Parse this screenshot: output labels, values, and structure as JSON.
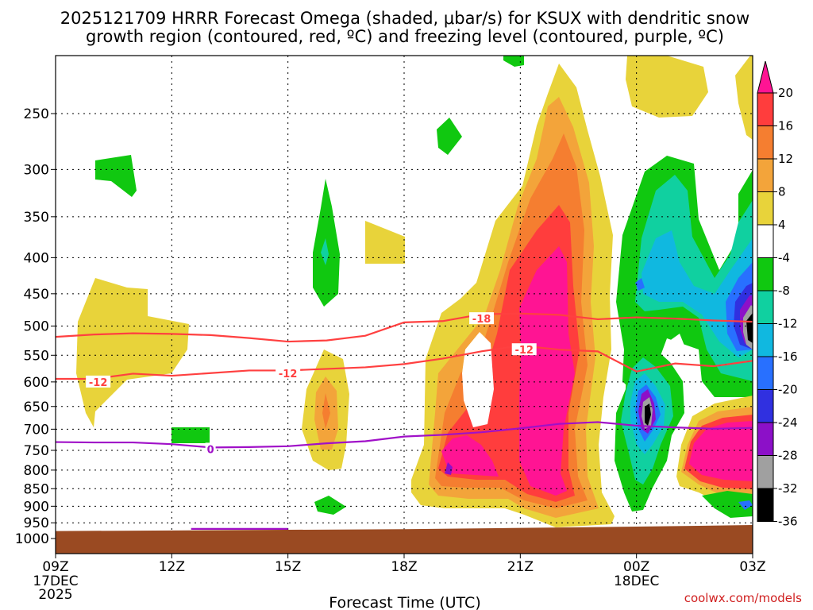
{
  "chart_data": {
    "type": "heatmap",
    "title_line1": "2025121709 HRRR Forecast Omega (shaded, μbar/s) for KSUX with dendritic snow",
    "title_line2": "growth region (contoured, red, ºC) and freezing level (contoured, purple, ºC)",
    "xlabel": "Forecast Time (UTC)",
    "credit": "coolwx.com/models",
    "x_ticks": [
      {
        "hour": 0,
        "label": "09Z",
        "date": "17DEC",
        "year": "2025"
      },
      {
        "hour": 3,
        "label": "12Z"
      },
      {
        "hour": 6,
        "label": "15Z"
      },
      {
        "hour": 9,
        "label": "18Z"
      },
      {
        "hour": 12,
        "label": "21Z"
      },
      {
        "hour": 15,
        "label": "00Z",
        "date": "18DEC"
      },
      {
        "hour": 18,
        "label": "03Z"
      }
    ],
    "y_ticks": [
      250,
      300,
      350,
      400,
      450,
      500,
      550,
      600,
      650,
      700,
      750,
      800,
      850,
      900,
      950,
      1000
    ],
    "ylim": [
      200,
      1025
    ],
    "xlim": [
      0,
      18
    ],
    "colorbar": {
      "labels": [
        "20",
        "16",
        "12",
        "8",
        "4",
        "-4",
        "-8",
        "-12",
        "-16",
        "-20",
        "-24",
        "-28",
        "-32",
        "-36"
      ],
      "colors": [
        "#ff1493",
        "#ff3d3d",
        "#f57e30",
        "#f3a43a",
        "#e8d33a",
        "#ffffff",
        "#10c810",
        "#10d0a0",
        "#10b8e0",
        "#2870ff",
        "#3030e0",
        "#8c10c8",
        "#a0a0a0",
        "#000000"
      ]
    },
    "contours": [
      {
        "name": "dendritic-top",
        "value": -18,
        "label": "-18",
        "color": "#ff4040",
        "points": [
          [
            0,
            518
          ],
          [
            1,
            514
          ],
          [
            2,
            512
          ],
          [
            3,
            513
          ],
          [
            4,
            515
          ],
          [
            5,
            520
          ],
          [
            6,
            526
          ],
          [
            7,
            524
          ],
          [
            8,
            516
          ],
          [
            9,
            494
          ],
          [
            10,
            492
          ],
          [
            11,
            481
          ],
          [
            12,
            480
          ],
          [
            13,
            482
          ],
          [
            14,
            489
          ],
          [
            15,
            486
          ],
          [
            16,
            488
          ],
          [
            17,
            491
          ],
          [
            18,
            493
          ]
        ]
      },
      {
        "name": "dendritic-bottom",
        "value": -12,
        "label": "-12",
        "color": "#ff4040",
        "points": [
          [
            0,
            594
          ],
          [
            1,
            594
          ],
          [
            2,
            584
          ],
          [
            3,
            588
          ],
          [
            4,
            583
          ],
          [
            5,
            578
          ],
          [
            6,
            578
          ],
          [
            7,
            575
          ],
          [
            8,
            572
          ],
          [
            9,
            566
          ],
          [
            10,
            556
          ],
          [
            11,
            543
          ],
          [
            12,
            533
          ],
          [
            13,
            540
          ],
          [
            14,
            543
          ],
          [
            15,
            580
          ],
          [
            16,
            565
          ],
          [
            17,
            570
          ],
          [
            18,
            560
          ]
        ]
      },
      {
        "name": "freezing-level",
        "value": 0,
        "label": "0",
        "color": "#a010c8",
        "points": [
          [
            0,
            730
          ],
          [
            1,
            731
          ],
          [
            2,
            731
          ],
          [
            3,
            735
          ],
          [
            4,
            743
          ],
          [
            5,
            742
          ],
          [
            6,
            740
          ],
          [
            7,
            733
          ],
          [
            8,
            728
          ],
          [
            9,
            717
          ],
          [
            10,
            713
          ],
          [
            11,
            707
          ],
          [
            12,
            698
          ],
          [
            13,
            688
          ],
          [
            14,
            684
          ],
          [
            15,
            692
          ],
          [
            16,
            696
          ],
          [
            17,
            699
          ],
          [
            18,
            697
          ]
        ]
      }
    ],
    "contour_labels": [
      {
        "contour": "dendritic-bottom",
        "hour": 1.1,
        "p": 600,
        "text": "-12"
      },
      {
        "contour": "dendritic-bottom",
        "hour": 6.0,
        "p": 583,
        "text": "-12"
      },
      {
        "contour": "dendritic-bottom",
        "hour": 12.1,
        "p": 540,
        "text": "-12"
      },
      {
        "contour": "dendritic-top",
        "hour": 11.0,
        "p": 488,
        "text": "-18"
      },
      {
        "contour": "freezing-level",
        "hour": 4.0,
        "p": 747,
        "text": "0"
      }
    ],
    "surface_pressure": [
      [
        0,
        976
      ],
      [
        3,
        974
      ],
      [
        6,
        972
      ],
      [
        9,
        970
      ],
      [
        12,
        966
      ],
      [
        15,
        962
      ],
      [
        18,
        957
      ]
    ]
  }
}
